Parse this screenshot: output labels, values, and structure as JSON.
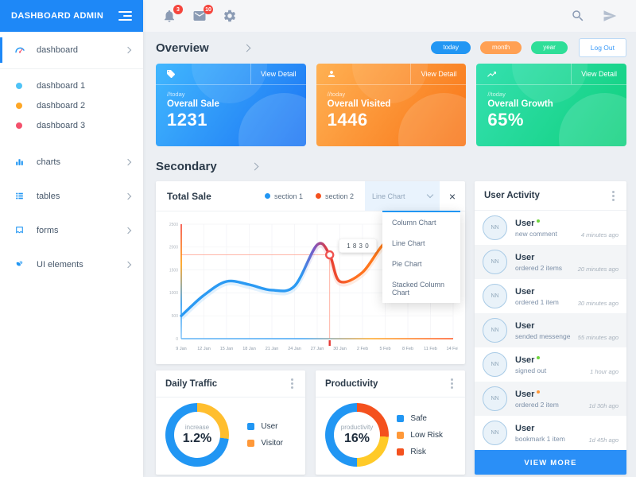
{
  "app": {
    "title": "DASHBOARD ADMIN"
  },
  "topbar": {
    "bell_badge": "3",
    "mail_badge": "10"
  },
  "sidebar": {
    "items": [
      {
        "label": "dashboard",
        "icon": "gauge",
        "active": true
      },
      {
        "label": "dashboard 1",
        "dot": "#4fc3f7"
      },
      {
        "label": "dashboard 2",
        "dot": "#ffa726"
      },
      {
        "label": "dashboard 3",
        "dot": "#f4516c"
      },
      {
        "label": "charts",
        "icon": "bar-chart"
      },
      {
        "label": "tables",
        "icon": "table"
      },
      {
        "label": "forms",
        "icon": "form"
      },
      {
        "label": "UI elements",
        "icon": "ui"
      }
    ]
  },
  "overview": {
    "title": "Overview",
    "pills": [
      {
        "label": "today",
        "color": "#2196f3"
      },
      {
        "label": "month",
        "color": "#ffa053"
      },
      {
        "label": "year",
        "color": "#2ede98"
      }
    ],
    "logout_label": "Log Out",
    "cards": [
      {
        "icon": "tag",
        "period": "//today",
        "title": "Overall Sale",
        "value": "1231",
        "link": "View Detail",
        "gradient": [
          "#41b7fe",
          "#1b74f3"
        ]
      },
      {
        "icon": "person",
        "period": "//today",
        "title": "Overall Visited",
        "value": "1446",
        "link": "View Detail",
        "gradient": [
          "#ffb153",
          "#f87416"
        ]
      },
      {
        "icon": "trending-up",
        "period": "//today",
        "title": "Overall Growth",
        "value": "65%",
        "link": "View Detail",
        "gradient": [
          "#35e0b0",
          "#0fd07d"
        ]
      }
    ]
  },
  "secondary": {
    "title": "Secondary"
  },
  "total_sale": {
    "title": "Total Sale",
    "legend": [
      {
        "label": "section 1",
        "color": "#2196f3"
      },
      {
        "label": "section 2",
        "color": "#f4511e"
      }
    ],
    "select_value": "Line Chart",
    "close_glyph": "×",
    "dropdown_items": [
      "Column Chart",
      "Line Chart",
      "Pie Chart",
      "Stacked Column Chart"
    ]
  },
  "chart_data": {
    "type": "line",
    "title": "Total Sale",
    "x": [
      "9 Jan",
      "12 Jan",
      "15 Jan",
      "18 Jan",
      "21 Jan",
      "24 Jan",
      "27 Jan",
      "30 Jan",
      "2 Feb",
      "5 Feb",
      "8 Feb",
      "11 Feb",
      "14 Feb"
    ],
    "series": [
      {
        "name": "total sale (blue section 1 blending into red/orange section 2)",
        "values": [
          500,
          950,
          1250,
          1180,
          1060,
          1150,
          2050,
          1250,
          1450,
          2100,
          2280,
          2350,
          2420
        ]
      }
    ],
    "highlight": {
      "x_index": 6.55,
      "value": 1830,
      "label": "1 8 3 0"
    },
    "y_ticks": [
      0,
      500,
      1000,
      1500,
      2000,
      2500
    ],
    "ylim": [
      0,
      2500
    ],
    "xlabel": "",
    "ylabel": "",
    "grid": true,
    "legend": [
      "section 1",
      "section 2"
    ],
    "legend_position": "top-right"
  },
  "daily_traffic": {
    "title": "Daily Traffic",
    "center_label": "increase",
    "center_value": "1.2%",
    "segments": [
      {
        "label": "Visitor",
        "color": "#ffbe2e",
        "pct": 27
      },
      {
        "label": "User",
        "color": "#2196f3",
        "pct": 73
      }
    ],
    "legend": [
      {
        "label": "User",
        "color": "#2196f3"
      },
      {
        "label": "Visitor",
        "color": "#ff9838"
      }
    ]
  },
  "productivity": {
    "title": "Productivity",
    "center_label": "productivity",
    "center_value": "16%",
    "segments": [
      {
        "label": "Risk",
        "color": "#f4511e",
        "pct": 26
      },
      {
        "label": "Low Risk",
        "color": "#ffca28",
        "pct": 24
      },
      {
        "label": "Safe",
        "color": "#2196f3",
        "pct": 50
      }
    ],
    "legend": [
      {
        "label": "Safe",
        "color": "#2196f3"
      },
      {
        "label": "Low Risk",
        "color": "#ff9838"
      },
      {
        "label": "Risk",
        "color": "#f4511e"
      }
    ]
  },
  "user_activity": {
    "title": "User Activity",
    "avatar_text": "NN",
    "items": [
      {
        "name": "User",
        "status": "green",
        "action": "new comment",
        "time": "4 minutes ago"
      },
      {
        "name": "User",
        "status": "",
        "action": "ordered 2 items",
        "time": "20 minutes ago"
      },
      {
        "name": "User",
        "status": "",
        "action": "ordered 1 item",
        "time": "30 minutes ago"
      },
      {
        "name": "User",
        "status": "",
        "action": "sended messenge",
        "time": "55 minutes ago"
      },
      {
        "name": "User",
        "status": "green",
        "action": "signed out",
        "time": "1 hour ago"
      },
      {
        "name": "User",
        "status": "orange",
        "action": "ordered 2 item",
        "time": "1d 30h ago"
      },
      {
        "name": "User",
        "status": "",
        "action": "bookmark 1 item",
        "time": "1d 45h ago"
      }
    ],
    "view_more_label": "VIEW MORE"
  }
}
